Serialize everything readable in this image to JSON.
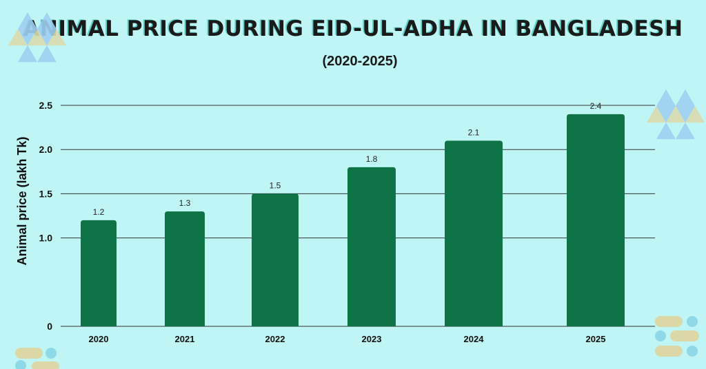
{
  "colors": {
    "background": "#bff5f5",
    "bar": "#0f7348",
    "grid": "#333333",
    "deco_triangle_blue": "#9fd0f2",
    "deco_triangle_tan": "#d9dcae",
    "deco_pill_tan": "#dcd7a6",
    "deco_dot_blue": "#8fd9e6"
  },
  "chart_data": {
    "type": "bar",
    "title": "ANIMAL PRICE DURING EID-UL-ADHA IN BANGLADESH",
    "subtitle": "(2020-2025)",
    "xlabel": "",
    "ylabel": "Animal price (lakh Tk)",
    "categories": [
      "2020",
      "2021",
      "2022",
      "2023",
      "2024",
      "2025"
    ],
    "values": [
      1.2,
      1.3,
      1.5,
      1.8,
      2.1,
      2.4
    ],
    "value_labels": [
      "1.2",
      "1.3",
      "1.5",
      "1.8",
      "2.1",
      "2.4"
    ],
    "ylim": [
      0,
      2.5
    ],
    "yticks": [
      0,
      1.0,
      1.5,
      2.0,
      2.5
    ],
    "ytick_labels": [
      "0",
      "1.0",
      "1.5",
      "2.0",
      "2.5"
    ],
    "grid": true,
    "legend": "none"
  }
}
